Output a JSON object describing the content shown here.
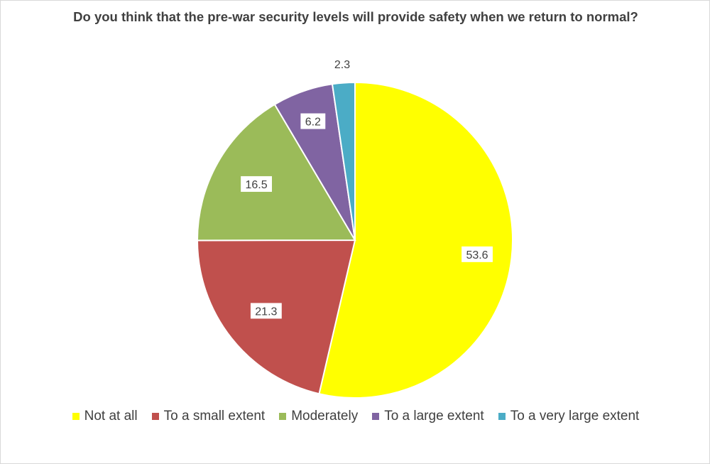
{
  "chart_data": {
    "type": "pie",
    "title": "Do you think that the pre-war security levels will provide safety when we return to normal?",
    "categories": [
      "Not at all",
      "To a small extent",
      "Moderately",
      "To a large extent",
      "To a very large extent"
    ],
    "values": [
      53.6,
      21.3,
      16.5,
      6.2,
      2.3
    ],
    "data_labels": [
      "53.6",
      "21.3",
      "16.5",
      "6.2",
      "2.3"
    ],
    "colors": [
      "#ffff00",
      "#c0504d",
      "#9bbb59",
      "#8064a2",
      "#4bacc6"
    ],
    "start": "12 o'clock, clockwise",
    "legend_position": "bottom"
  }
}
